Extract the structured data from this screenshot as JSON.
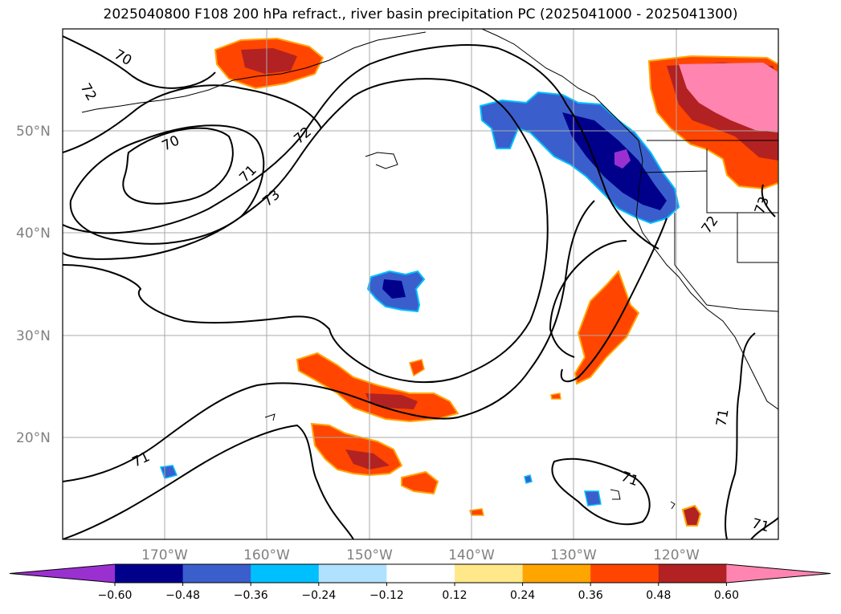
{
  "title": "2025040800 F108 200 hPa refract., river basin precipitation PC (2025041000 - 2025041300)",
  "lat_labels": [
    "50°N",
    "40°N",
    "30°N",
    "20°N"
  ],
  "lon_labels": [
    "170°W",
    "160°W",
    "150°W",
    "140°W",
    "130°W",
    "120°W"
  ],
  "contour_labels": [
    "70",
    "72",
    "70",
    "71",
    "72",
    "73",
    "72",
    "73",
    "71",
    "71",
    "71"
  ],
  "colorbar": {
    "ticks": [
      "−0.60",
      "−0.48",
      "−0.36",
      "−0.24",
      "−0.12",
      "0.12",
      "0.24",
      "0.36",
      "0.48",
      "0.60"
    ],
    "colors": [
      "#9b30d0",
      "#00008b",
      "#3a5fcd",
      "#00bfff",
      "#b0e2ff",
      "#ffffff",
      "#ffe88a",
      "#ffa500",
      "#ff4500",
      "#b22222",
      "#ff85b0"
    ]
  }
}
